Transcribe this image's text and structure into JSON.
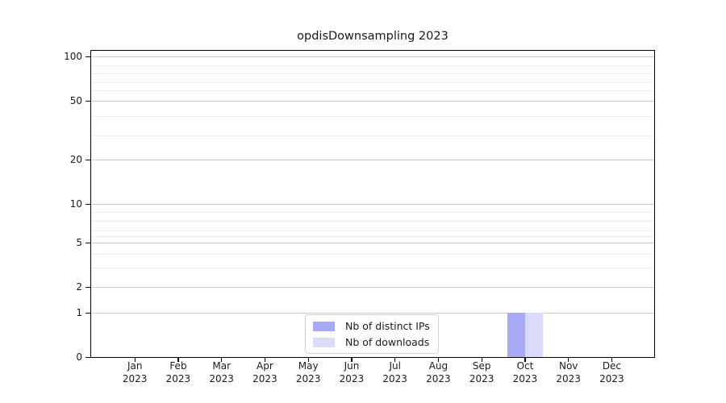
{
  "title": "opdisDownsampling 2023",
  "chart_data": {
    "type": "bar",
    "title": "opdisDownsampling 2023",
    "xlabel": "",
    "ylabel": "",
    "categories": [
      "Jan 2023",
      "Feb 2023",
      "Mar 2023",
      "Apr 2023",
      "May 2023",
      "Jun 2023",
      "Jul 2023",
      "Aug 2023",
      "Sep 2023",
      "Oct 2023",
      "Nov 2023",
      "Dec 2023"
    ],
    "series": [
      {
        "name": "Nb of distinct IPs",
        "color": "#aaaaf4",
        "values": [
          0,
          0,
          0,
          0,
          0,
          0,
          0,
          0,
          0,
          1,
          0,
          0
        ]
      },
      {
        "name": "Nb of downloads",
        "color": "#dadaf9",
        "values": [
          0,
          0,
          0,
          0,
          0,
          0,
          0,
          0,
          0,
          1,
          0,
          0
        ]
      }
    ],
    "y_axis": {
      "scale": "log-like",
      "range": [
        0,
        110
      ],
      "major_ticks": [
        100,
        50,
        20,
        10,
        5,
        2,
        1,
        0
      ],
      "minor_gridlines": [
        90,
        80,
        70,
        60,
        40,
        30,
        9,
        8,
        7,
        6,
        4,
        3
      ]
    },
    "grid": true,
    "legend": {
      "position": "bottom-center",
      "entries": [
        "Nb of distinct IPs",
        "Nb of downloads"
      ]
    },
    "colors": {
      "axis": "#000000",
      "major_grid": "#c9c9c9",
      "minor_grid": "#efefef",
      "background": "#ffffff"
    }
  }
}
